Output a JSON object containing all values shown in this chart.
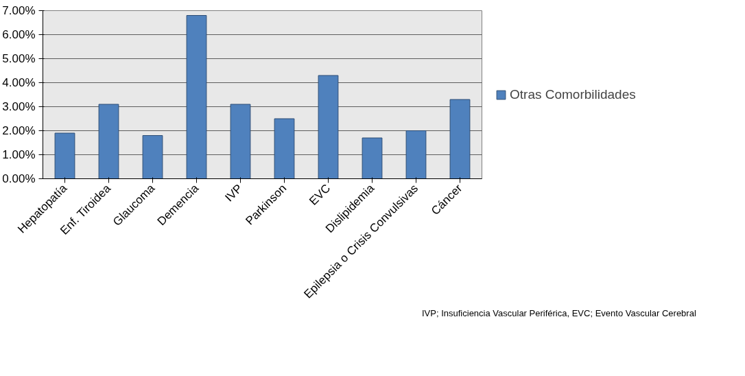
{
  "chart_data": {
    "type": "bar",
    "categories": [
      "Hepatopatía",
      "Enf. Tiroidea",
      "Glaucoma",
      "Demencia",
      "IVP",
      "Parkinson",
      "EVC",
      "Dislipidemia",
      "Epilepsia o Crisis Convulsivas",
      "Cáncer"
    ],
    "series": [
      {
        "name": "Otras Comorbilidades",
        "color": "#4f81bd",
        "values": [
          1.9,
          3.1,
          1.8,
          6.8,
          3.1,
          2.5,
          4.3,
          1.7,
          2.0,
          3.3
        ]
      }
    ],
    "ylim": [
      0,
      7
    ],
    "yticks": [
      {
        "value": 0,
        "label": "0.00%"
      },
      {
        "value": 1,
        "label": "1.00%"
      },
      {
        "value": 2,
        "label": "2.00%"
      },
      {
        "value": 3,
        "label": "3.00%"
      },
      {
        "value": 4,
        "label": "4.00%"
      },
      {
        "value": 5,
        "label": "5.00%"
      },
      {
        "value": 6,
        "label": "6.00%"
      },
      {
        "value": 7,
        "label": "7.00%"
      }
    ],
    "grid": "y",
    "legend": "right",
    "annotations": [
      "IVP; Insuficiencia Vascular Periférica, EVC; Evento Vascular Cerebral"
    ]
  }
}
